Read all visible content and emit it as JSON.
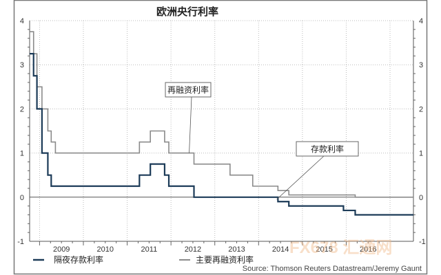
{
  "chart_data": {
    "type": "line",
    "title": "欧洲央行利率",
    "xlabel": "",
    "ylabel": "",
    "ylim": [
      -1,
      4
    ],
    "xlim": [
      "2008-10-10",
      "2017-07-15"
    ],
    "yticks": [
      "4",
      "3",
      "2",
      "1",
      "0",
      "-1"
    ],
    "xticks": [
      "2009",
      "2010",
      "2011",
      "2012",
      "2013",
      "2014",
      "2015",
      "2016"
    ],
    "grid": true,
    "legend_position": "bottom",
    "series": [
      {
        "name": "隔夜存款利率",
        "color": "#1b3a57",
        "step": true,
        "points": [
          [
            "2008-10-10",
            3.25
          ],
          [
            "2008-11-12",
            2.75
          ],
          [
            "2008-12-10",
            2.0
          ],
          [
            "2009-01-21",
            1.0
          ],
          [
            "2009-03-11",
            0.5
          ],
          [
            "2009-04-08",
            0.25
          ],
          [
            "2011-04-13",
            0.5
          ],
          [
            "2011-07-13",
            0.75
          ],
          [
            "2011-11-09",
            0.5
          ],
          [
            "2011-12-14",
            0.25
          ],
          [
            "2012-07-11",
            0.0
          ],
          [
            "2014-06-11",
            -0.1
          ],
          [
            "2014-09-10",
            -0.2
          ],
          [
            "2015-12-09",
            -0.3
          ],
          [
            "2016-03-16",
            -0.4
          ],
          [
            "2017-07-15",
            -0.4
          ]
        ]
      },
      {
        "name": "主要再融资利率",
        "color": "#8a8a8a",
        "step": true,
        "points": [
          [
            "2008-10-10",
            3.75
          ],
          [
            "2008-11-12",
            3.25
          ],
          [
            "2008-12-10",
            2.5
          ],
          [
            "2009-01-21",
            2.0
          ],
          [
            "2009-03-11",
            1.5
          ],
          [
            "2009-04-08",
            1.25
          ],
          [
            "2009-05-13",
            1.0
          ],
          [
            "2011-04-13",
            1.25
          ],
          [
            "2011-07-13",
            1.5
          ],
          [
            "2011-11-09",
            1.25
          ],
          [
            "2011-12-14",
            1.0
          ],
          [
            "2012-07-11",
            0.75
          ],
          [
            "2013-05-08",
            0.5
          ],
          [
            "2013-11-13",
            0.25
          ],
          [
            "2014-06-11",
            0.15
          ],
          [
            "2014-09-10",
            0.05
          ],
          [
            "2016-03-16",
            0.0
          ],
          [
            "2017-07-15",
            0.0
          ]
        ]
      }
    ],
    "annotations": [
      {
        "text": "再融资利率",
        "points_to": [
          "2012-06-01",
          1.0
        ]
      },
      {
        "text": "存款利率",
        "points_to": [
          "2014-06-01",
          -0.05
        ]
      }
    ],
    "source": "Source: Thomson Reuters Datastream/Jeremy Gaunt"
  },
  "watermark": "FX678 汇通网"
}
